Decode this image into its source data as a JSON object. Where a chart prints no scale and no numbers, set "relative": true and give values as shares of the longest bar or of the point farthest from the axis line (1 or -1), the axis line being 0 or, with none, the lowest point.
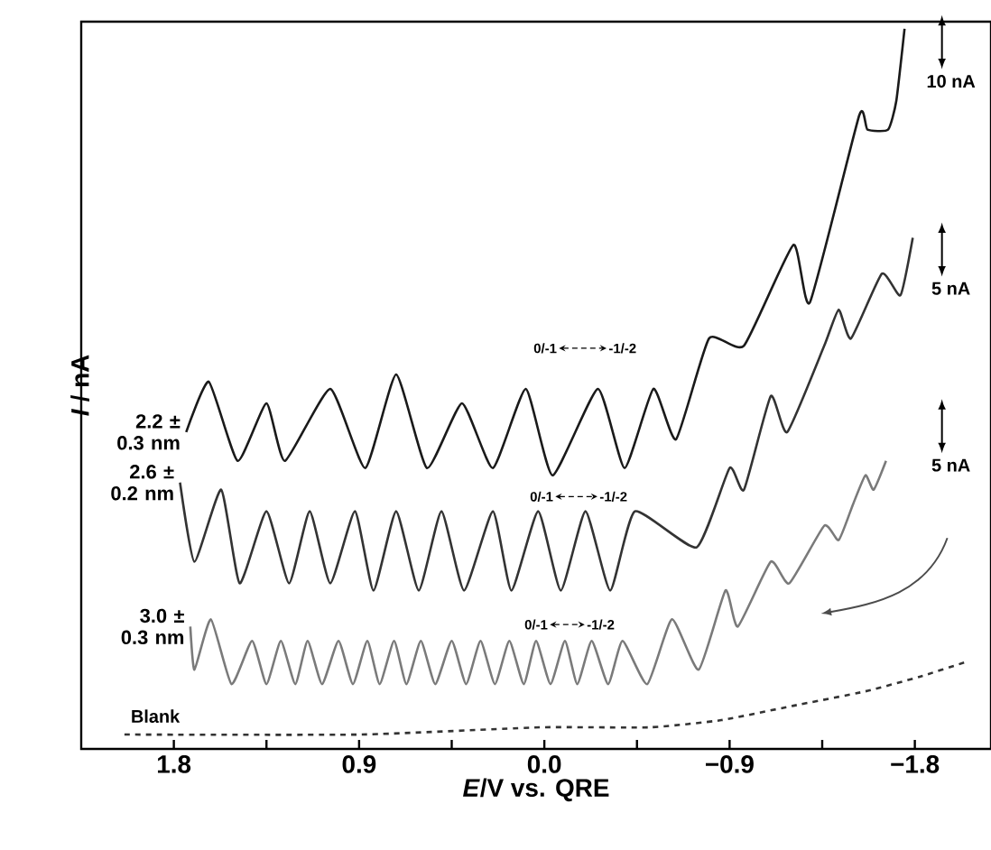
{
  "chart_data": {
    "type": "line",
    "relative": true,
    "xlabel": "*E*/V vs. QRE",
    "ylabel": "*I* / nA",
    "tick_labels": "x",
    "xlim": [
      2.25,
      -2.17
    ],
    "xticks": [
      1.8,
      {
        "value": 1.35,
        "label": null
      },
      0.9,
      {
        "value": 0.45,
        "label": null
      },
      {
        "value": 0,
        "label": "0.0"
      },
      {
        "value": -0.45,
        "label": null
      },
      {
        "value": -0.9,
        "label": "−0.9"
      },
      {
        "value": -1.35,
        "label": null
      },
      {
        "value": -1.8,
        "label": "−1.8"
      }
    ],
    "series": [
      {
        "name": "2.2 ± 0.3 nm",
        "color": "#1a1a1a",
        "x": [
          1.74,
          1.63,
          1.49,
          1.35,
          1.26,
          1.04,
          0.87,
          0.72,
          0.57,
          0.4,
          0.25,
          0.09,
          -0.04,
          -0.26,
          -0.39,
          -0.53,
          -0.64,
          -0.8,
          -0.97,
          -1.21,
          -1.29,
          -1.53,
          -1.57,
          -1.67,
          -1.71,
          -1.75
        ],
        "values": [
          0.44,
          0.51,
          0.4,
          0.48,
          0.4,
          0.5,
          0.39,
          0.52,
          0.39,
          0.48,
          0.39,
          0.5,
          0.38,
          0.5,
          0.39,
          0.5,
          0.43,
          0.57,
          0.56,
          0.7,
          0.62,
          0.88,
          0.86,
          0.86,
          0.9,
          1.0
        ]
      },
      {
        "name": "2.6 ± 0.2 nm",
        "color": "#333333",
        "x": [
          1.77,
          1.7,
          1.57,
          1.48,
          1.35,
          1.24,
          1.14,
          1.04,
          0.92,
          0.83,
          0.72,
          0.61,
          0.5,
          0.39,
          0.25,
          0.16,
          0.03,
          -0.08,
          -0.2,
          -0.32,
          -0.44,
          -0.74,
          -0.9,
          -0.97,
          -1.1,
          -1.18,
          -1.36,
          -1.43,
          -1.49,
          -1.64,
          -1.73,
          -1.79
        ],
        "values": [
          0.37,
          0.26,
          0.36,
          0.23,
          0.33,
          0.23,
          0.33,
          0.23,
          0.33,
          0.22,
          0.33,
          0.22,
          0.33,
          0.22,
          0.33,
          0.22,
          0.33,
          0.22,
          0.33,
          0.22,
          0.33,
          0.28,
          0.39,
          0.36,
          0.49,
          0.44,
          0.56,
          0.61,
          0.57,
          0.66,
          0.63,
          0.71
        ]
      },
      {
        "name": "3.0 ± 0.3 nm",
        "color": "#7a7a7a",
        "x": [
          1.72,
          1.7,
          1.62,
          1.52,
          1.42,
          1.35,
          1.28,
          1.21,
          1.15,
          1.08,
          1.0,
          0.93,
          0.86,
          0.8,
          0.73,
          0.67,
          0.6,
          0.53,
          0.45,
          0.38,
          0.31,
          0.24,
          0.17,
          0.1,
          0.04,
          -0.03,
          -0.1,
          -0.16,
          -0.23,
          -0.31,
          -0.38,
          -0.5,
          -0.62,
          -0.75,
          -0.88,
          -0.94,
          -1.1,
          -1.19,
          -1.36,
          -1.43,
          -1.5,
          -1.56,
          -1.6,
          -1.66
        ],
        "values": [
          0.17,
          0.11,
          0.18,
          0.09,
          0.15,
          0.09,
          0.15,
          0.09,
          0.15,
          0.09,
          0.15,
          0.09,
          0.15,
          0.09,
          0.15,
          0.09,
          0.15,
          0.09,
          0.15,
          0.09,
          0.15,
          0.09,
          0.15,
          0.09,
          0.15,
          0.09,
          0.15,
          0.09,
          0.15,
          0.09,
          0.15,
          0.09,
          0.18,
          0.11,
          0.22,
          0.17,
          0.26,
          0.23,
          0.31,
          0.29,
          0.34,
          0.38,
          0.36,
          0.4
        ]
      },
      {
        "name": "Blank",
        "color": "#333333",
        "line_style": "dashed",
        "x": [
          2.04,
          0.89,
          0.02,
          -0.51,
          -0.86,
          -1.21,
          -1.56,
          -1.82,
          -2.04
        ],
        "values": [
          0.02,
          0.02,
          0.03,
          0.03,
          0.04,
          0.06,
          0.08,
          0.1,
          0.12
        ]
      }
    ],
    "annotations": [
      "0/-1",
      "-1/-2",
      "0/-1",
      "-1/-2",
      "0/-1",
      "-1/-2",
      "10 nA",
      "5 nA",
      "5 nA"
    ]
  }
}
